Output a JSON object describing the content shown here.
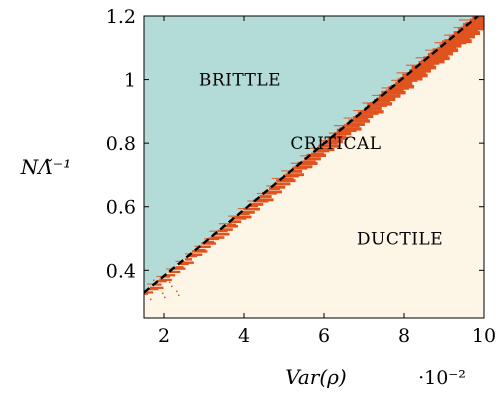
{
  "chart_data": {
    "type": "area",
    "title": "",
    "xlabel": "Var(ρ)",
    "ylabel": "NΛ̃⁻¹",
    "x_multiplier": "·10⁻²",
    "xlim": [
      1.5,
      10
    ],
    "ylim": [
      0.25,
      1.2
    ],
    "x_ticks": [
      2,
      4,
      6,
      8,
      10
    ],
    "y_ticks": [
      0.4,
      0.6,
      0.8,
      1,
      1.2
    ],
    "x_tick_labels": [
      "2",
      "4",
      "6",
      "8",
      "10"
    ],
    "y_tick_labels": [
      "0.4",
      "0.6",
      "0.8",
      "1",
      "1.2"
    ],
    "regions": [
      {
        "name": "BRITTLE",
        "color": "#b3dbd8",
        "label_at": [
          3.9,
          1.0
        ]
      },
      {
        "name": "CRITICAL",
        "color": "#e0531f",
        "label_at": [
          6.3,
          0.8
        ]
      },
      {
        "name": "DUCTILE",
        "color": "#fdf5e6",
        "label_at": [
          7.9,
          0.5
        ]
      }
    ],
    "boundary_line": {
      "style": "dashed",
      "color": "#000000",
      "x": [
        1.5,
        9.85
      ],
      "y": [
        0.33,
        1.2
      ]
    },
    "grid": false
  }
}
